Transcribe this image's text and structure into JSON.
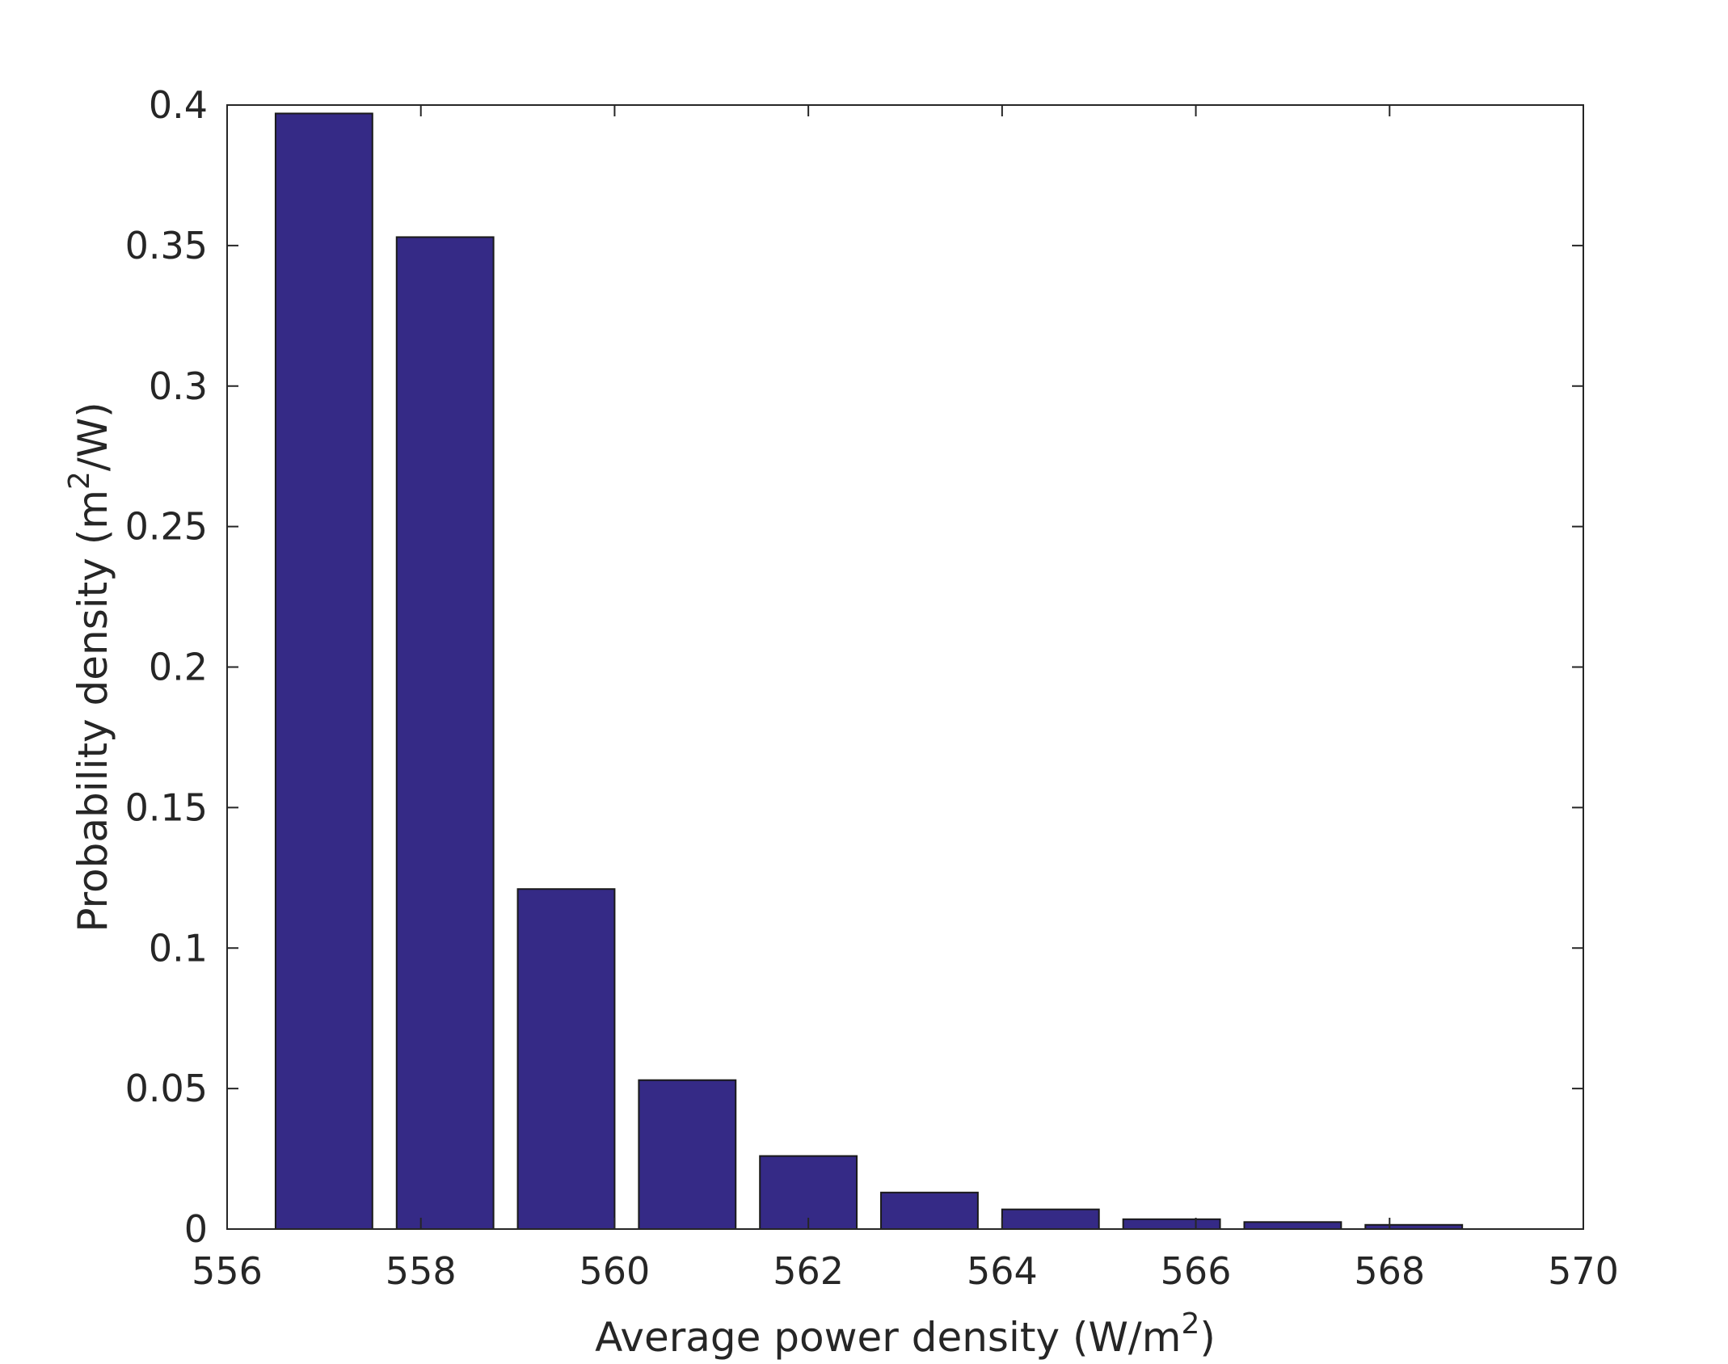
{
  "chart_data": {
    "type": "bar",
    "title": "",
    "xlabel": {
      "main": "Average power density (W/m",
      "sup": "2",
      "tail": ")"
    },
    "ylabel": {
      "main": "Probability density (m",
      "sup": "2",
      "tail": "/W)"
    },
    "x": [
      557,
      558.25,
      559.5,
      560.75,
      562,
      563.25,
      564.5,
      565.75,
      567,
      568.25
    ],
    "bin_width": 1.25,
    "values": [
      0.397,
      0.353,
      0.121,
      0.053,
      0.026,
      0.013,
      0.007,
      0.0035,
      0.0025,
      0.0015
    ],
    "xlim": [
      556,
      570
    ],
    "ylim": [
      0,
      0.4
    ],
    "xticks": [
      556,
      558,
      560,
      562,
      564,
      566,
      568,
      570
    ],
    "xtick_labels": [
      "556",
      "558",
      "560",
      "562",
      "564",
      "566",
      "568",
      "570"
    ],
    "yticks": [
      0,
      0.05,
      0.1,
      0.15,
      0.2,
      0.25,
      0.3,
      0.35,
      0.4
    ],
    "ytick_labels": [
      "0",
      "0.05",
      "0.1",
      "0.15",
      "0.2",
      "0.25",
      "0.3",
      "0.35",
      "0.4"
    ],
    "grid": false,
    "legend": false,
    "bar_color": "#352a86",
    "edge_color": "#1a1a1a",
    "axis_color": "#262626"
  }
}
